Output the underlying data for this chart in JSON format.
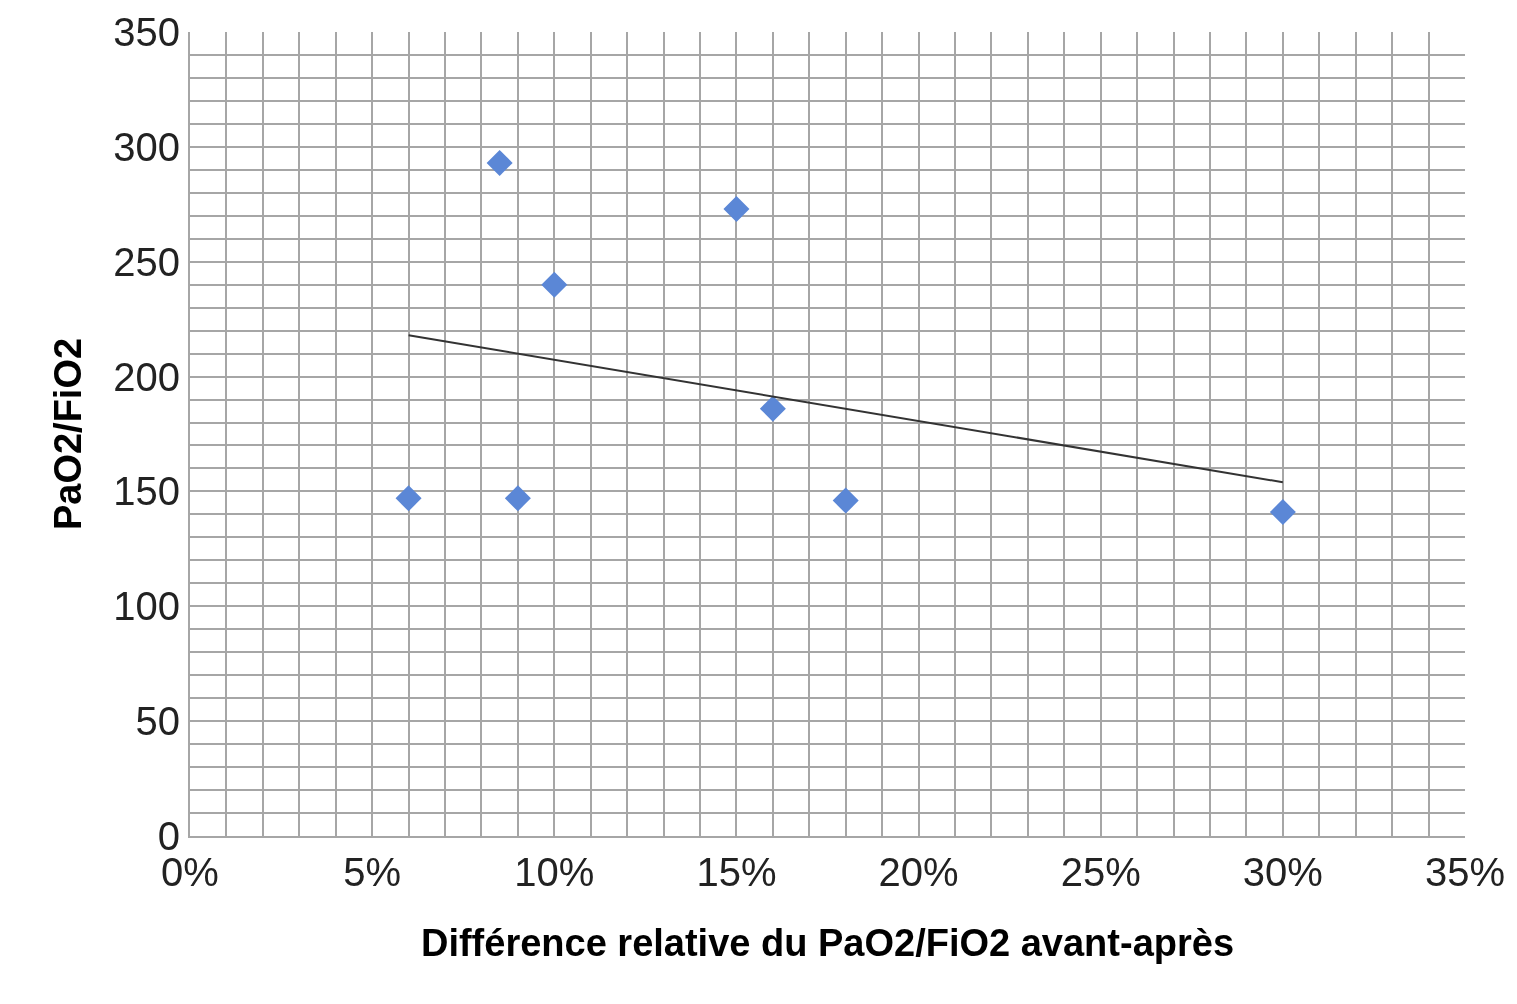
{
  "chart_data": {
    "type": "scatter",
    "xlabel": "Différence relative du PaO2/FiO2 avant-après",
    "ylabel": "PaO2/FiO2",
    "xlim": [
      0,
      0.35
    ],
    "ylim": [
      0,
      350
    ],
    "xticks": [
      {
        "value": 0,
        "label": "0%"
      },
      {
        "value": 0.01,
        "label": null
      },
      {
        "value": 0.02,
        "label": null
      },
      {
        "value": 0.03,
        "label": null
      },
      {
        "value": 0.04,
        "label": null
      },
      {
        "value": 0.05,
        "label": "5%"
      },
      {
        "value": 0.06,
        "label": null
      },
      {
        "value": 0.07,
        "label": null
      },
      {
        "value": 0.08,
        "label": null
      },
      {
        "value": 0.09,
        "label": null
      },
      {
        "value": 0.1,
        "label": "10%"
      },
      {
        "value": 0.11,
        "label": null
      },
      {
        "value": 0.12,
        "label": null
      },
      {
        "value": 0.13,
        "label": null
      },
      {
        "value": 0.14,
        "label": null
      },
      {
        "value": 0.15,
        "label": "15%"
      },
      {
        "value": 0.16,
        "label": null
      },
      {
        "value": 0.17,
        "label": null
      },
      {
        "value": 0.18,
        "label": null
      },
      {
        "value": 0.19,
        "label": null
      },
      {
        "value": 0.2,
        "label": "20%"
      },
      {
        "value": 0.21,
        "label": null
      },
      {
        "value": 0.22,
        "label": null
      },
      {
        "value": 0.23,
        "label": null
      },
      {
        "value": 0.24,
        "label": null
      },
      {
        "value": 0.25,
        "label": "25%"
      },
      {
        "value": 0.26,
        "label": null
      },
      {
        "value": 0.27,
        "label": null
      },
      {
        "value": 0.28,
        "label": null
      },
      {
        "value": 0.29,
        "label": null
      },
      {
        "value": 0.3,
        "label": "30%"
      },
      {
        "value": 0.31,
        "label": null
      },
      {
        "value": 0.32,
        "label": null
      },
      {
        "value": 0.33,
        "label": null
      },
      {
        "value": 0.34,
        "label": null
      },
      {
        "value": 0.35,
        "label": "35%"
      }
    ],
    "yticks": [
      0,
      {
        "value": 10,
        "label": null
      },
      {
        "value": 20,
        "label": null
      },
      {
        "value": 30,
        "label": null
      },
      {
        "value": 40,
        "label": null
      },
      50,
      {
        "value": 60,
        "label": null
      },
      {
        "value": 70,
        "label": null
      },
      {
        "value": 80,
        "label": null
      },
      {
        "value": 90,
        "label": null
      },
      100,
      {
        "value": 110,
        "label": null
      },
      {
        "value": 120,
        "label": null
      },
      {
        "value": 130,
        "label": null
      },
      {
        "value": 140,
        "label": null
      },
      150,
      {
        "value": 160,
        "label": null
      },
      {
        "value": 170,
        "label": null
      },
      {
        "value": 180,
        "label": null
      },
      {
        "value": 190,
        "label": null
      },
      200,
      {
        "value": 210,
        "label": null
      },
      {
        "value": 220,
        "label": null
      },
      {
        "value": 230,
        "label": null
      },
      {
        "value": 240,
        "label": null
      },
      250,
      {
        "value": 260,
        "label": null
      },
      {
        "value": 270,
        "label": null
      },
      {
        "value": 280,
        "label": null
      },
      {
        "value": 290,
        "label": null
      },
      300,
      {
        "value": 310,
        "label": null
      },
      {
        "value": 320,
        "label": null
      },
      {
        "value": 330,
        "label": null
      },
      {
        "value": 340,
        "label": null
      },
      350
    ],
    "grid": true,
    "marker": "diamond",
    "series": [
      {
        "color": "#5b87d6",
        "x": [
          0.06,
          0.085,
          0.1,
          0.09,
          0.15,
          0.16,
          0.18,
          0.3
        ],
        "values": [
          147,
          293,
          240,
          147,
          273,
          186,
          146,
          141
        ]
      },
      {
        "type": "line",
        "marker": "none",
        "color": "#333333",
        "x": [
          0.06,
          0.3
        ],
        "values": [
          218,
          154
        ]
      }
    ]
  }
}
